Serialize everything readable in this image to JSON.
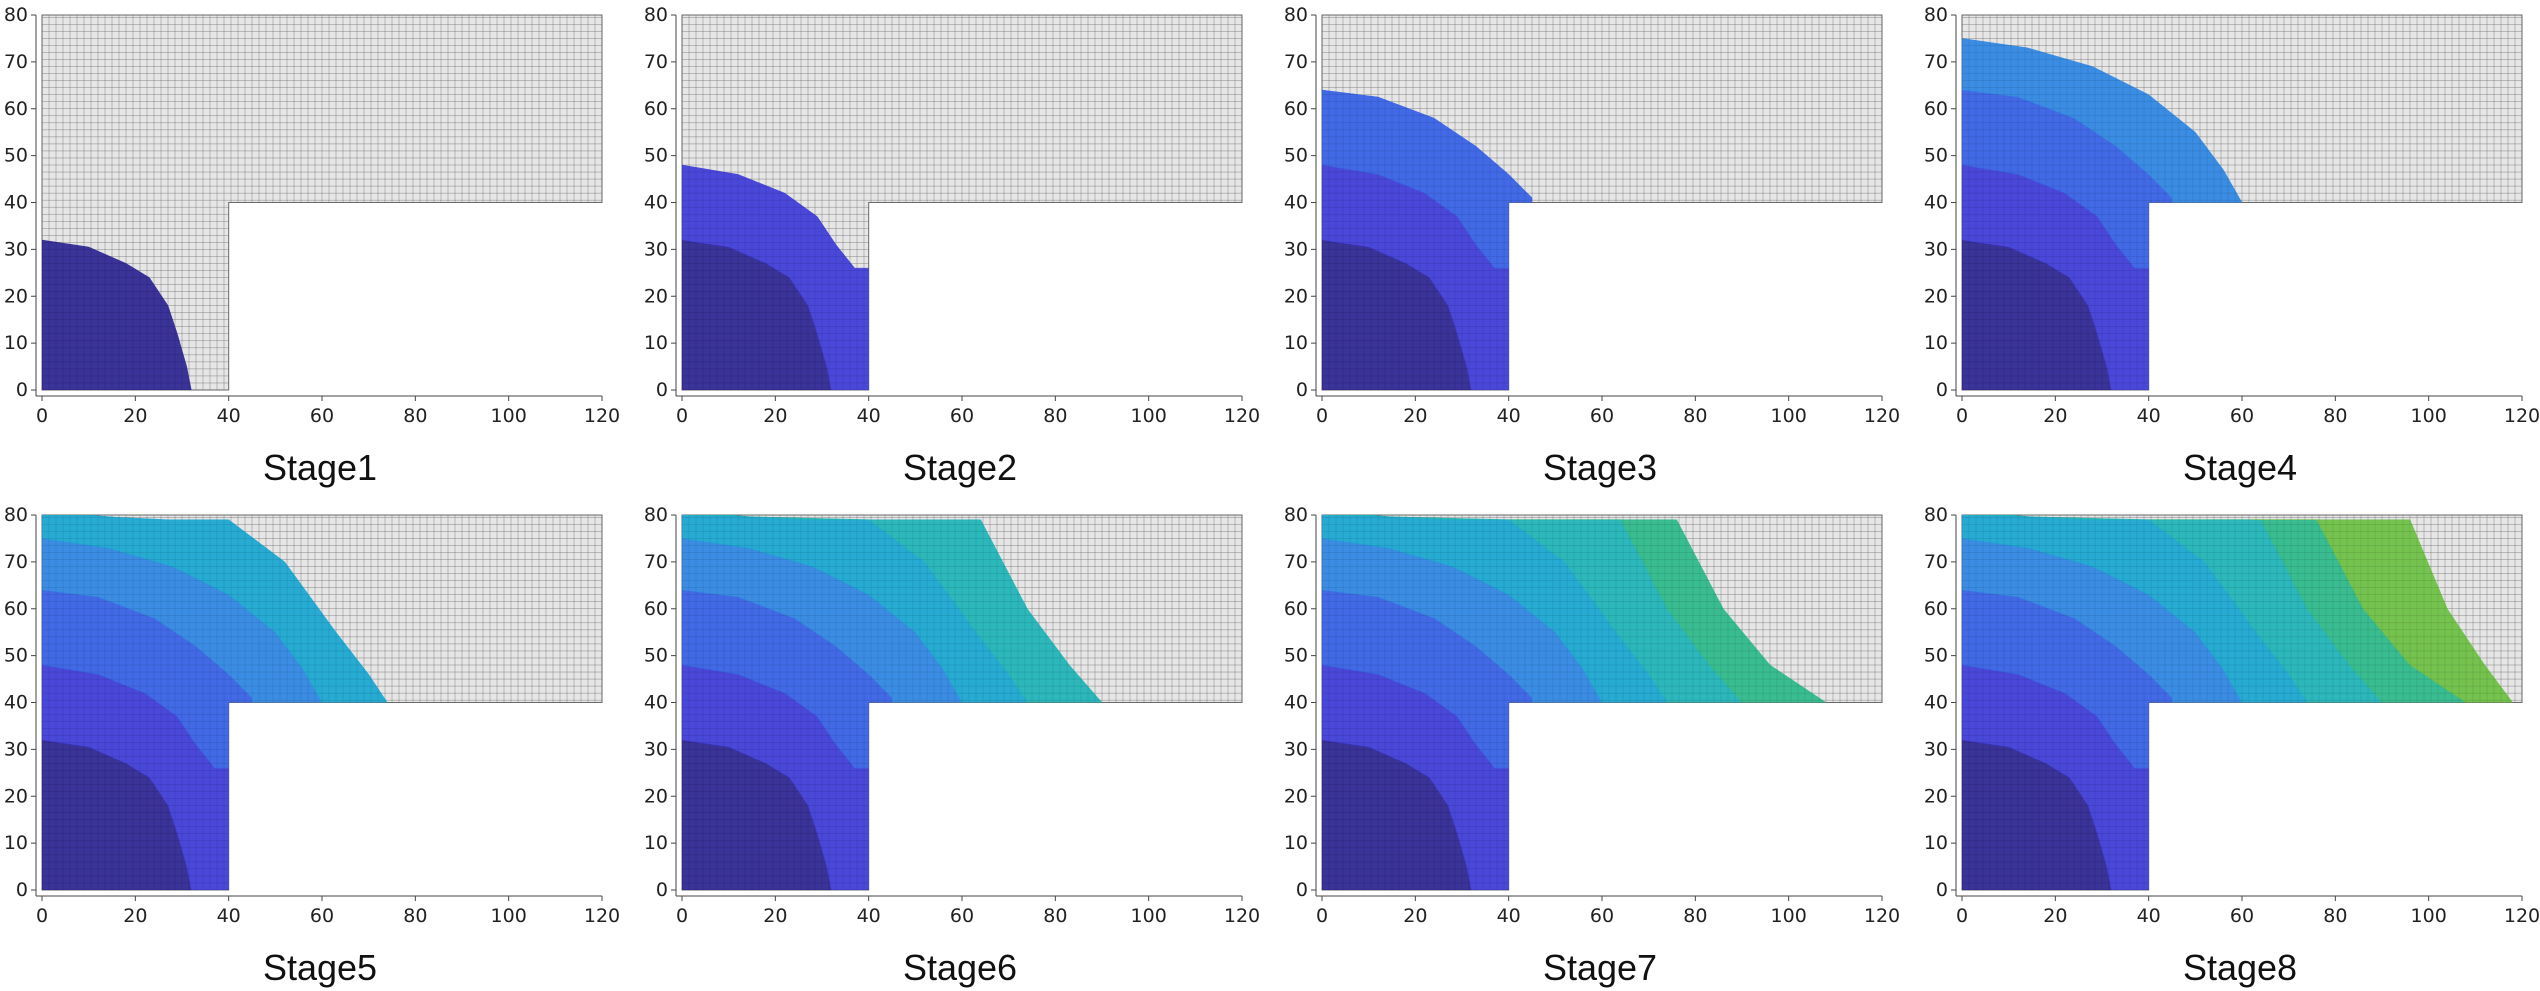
{
  "figure": {
    "colors": {
      "mesh_line": "#6a6a6a",
      "mesh_fill": "#e6e6e6",
      "axis": "#444444",
      "zones": [
        "#2c2492",
        "#3d3bd8",
        "#3560e6",
        "#2d86e4",
        "#17a6d2",
        "#1db4b8",
        "#2cb98a",
        "#6cc043",
        "#d9a922"
      ]
    },
    "stages": [
      {
        "label": "Stage1",
        "filled_zones": 1
      },
      {
        "label": "Stage2",
        "filled_zones": 2
      },
      {
        "label": "Stage3",
        "filled_zones": 3
      },
      {
        "label": "Stage4",
        "filled_zones": 4
      },
      {
        "label": "Stage5",
        "filled_zones": 5
      },
      {
        "label": "Stage6",
        "filled_zones": 6
      },
      {
        "label": "Stage7",
        "filled_zones": 7
      },
      {
        "label": "Stage8",
        "filled_zones": 8
      }
    ],
    "axes": {
      "x_ticks": [
        "0",
        "20",
        "40",
        "60",
        "80",
        "100",
        "120"
      ],
      "y_ticks": [
        "0",
        "10",
        "20",
        "30",
        "40",
        "50",
        "60",
        "70",
        "80"
      ],
      "xlim": [
        0,
        120
      ],
      "ylim": [
        0,
        80
      ]
    }
  }
}
